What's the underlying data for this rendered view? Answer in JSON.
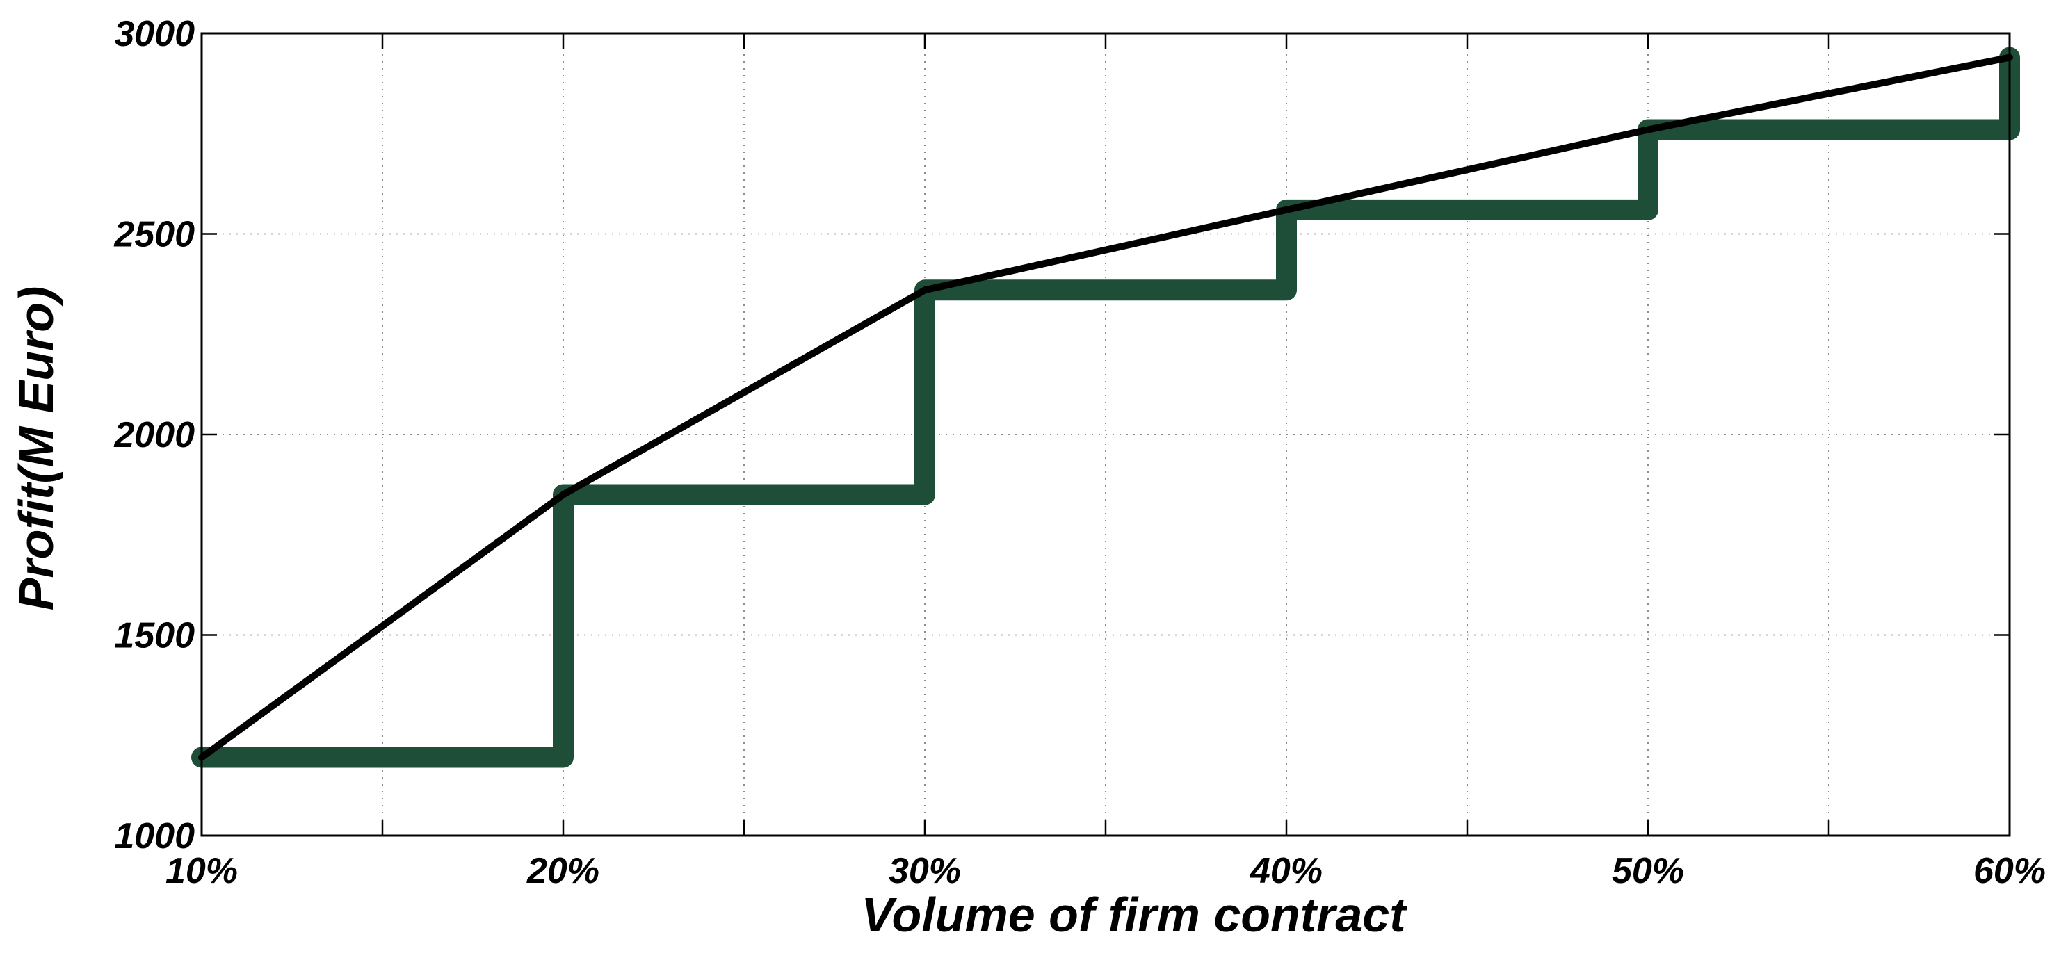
{
  "chart_data": {
    "type": "line",
    "title": "",
    "xlabel": "Volume of firm contract",
    "ylabel": "Profit(M Euro)",
    "xlim": [
      10,
      60
    ],
    "ylim": [
      1000,
      3000
    ],
    "x_ticks": [
      10,
      20,
      30,
      40,
      50,
      60
    ],
    "x_tick_labels": [
      "10%",
      "20%",
      "30%",
      "40%",
      "50%",
      "60%"
    ],
    "x_minor_grid": [
      15,
      25,
      35,
      45,
      55
    ],
    "y_ticks": [
      1000,
      1500,
      2000,
      2500,
      3000
    ],
    "y_tick_labels": [
      "1000",
      "1500",
      "2000",
      "2500",
      "3000"
    ],
    "grid": true,
    "legend": "none",
    "series": [
      {
        "style": "step",
        "color": "#1e4d38",
        "x": [
          10,
          20,
          20,
          30,
          30,
          40,
          40,
          50,
          50,
          60,
          60
        ],
        "y": [
          1195,
          1195,
          1850,
          1850,
          2360,
          2360,
          2560,
          2560,
          2760,
          2760,
          2940
        ]
      },
      {
        "style": "line",
        "color": "#000000",
        "x": [
          10,
          20,
          30,
          40,
          50,
          60
        ],
        "y": [
          1195,
          1850,
          2360,
          2560,
          2760,
          2940
        ]
      }
    ]
  }
}
